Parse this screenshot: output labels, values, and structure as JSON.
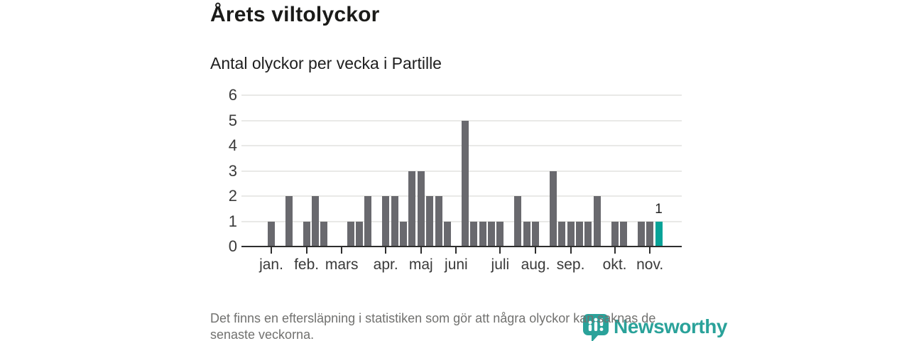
{
  "header": {
    "title": "Årets viltolyckor",
    "subtitle": "Antal olyckor per vecka i Partille"
  },
  "chart_data": {
    "type": "bar",
    "title": "Årets viltolyckor",
    "subtitle": "Antal olyckor per vecka i Partille",
    "x_unit": "vecka (week of year)",
    "first_week": 1,
    "values": [
      1,
      0,
      2,
      0,
      1,
      2,
      1,
      0,
      0,
      1,
      1,
      2,
      0,
      2,
      2,
      1,
      3,
      3,
      2,
      2,
      1,
      0,
      5,
      1,
      1,
      1,
      1,
      0,
      2,
      1,
      1,
      0,
      3,
      1,
      1,
      1,
      1,
      2,
      0,
      1,
      1,
      0,
      1,
      1,
      1
    ],
    "month_ticks": [
      {
        "label": "jan.",
        "week": 1
      },
      {
        "label": "feb.",
        "week": 5
      },
      {
        "label": "mars",
        "week": 9
      },
      {
        "label": "apr.",
        "week": 14
      },
      {
        "label": "maj",
        "week": 18
      },
      {
        "label": "juni",
        "week": 22
      },
      {
        "label": "juli",
        "week": 27
      },
      {
        "label": "aug.",
        "week": 31
      },
      {
        "label": "sep.",
        "week": 35
      },
      {
        "label": "okt.",
        "week": 40
      },
      {
        "label": "nov.",
        "week": 44
      }
    ],
    "yticks": [
      0,
      1,
      2,
      3,
      4,
      5,
      6
    ],
    "ylim": [
      0,
      6
    ],
    "grid": true,
    "legend": "none",
    "bar_color": "#69696e",
    "highlight": {
      "week": 45,
      "value": 1,
      "label": "1",
      "color": "#06a398"
    }
  },
  "footer": {
    "line1": "Det finns en eftersläpning i statistiken som gör att några olyckor kan saknas de",
    "line2": "senaste veckorna."
  },
  "logo": {
    "text": "Newsworthy",
    "icon": "newsworthy-pin-barchart-icon",
    "color": "#2aa29a"
  }
}
